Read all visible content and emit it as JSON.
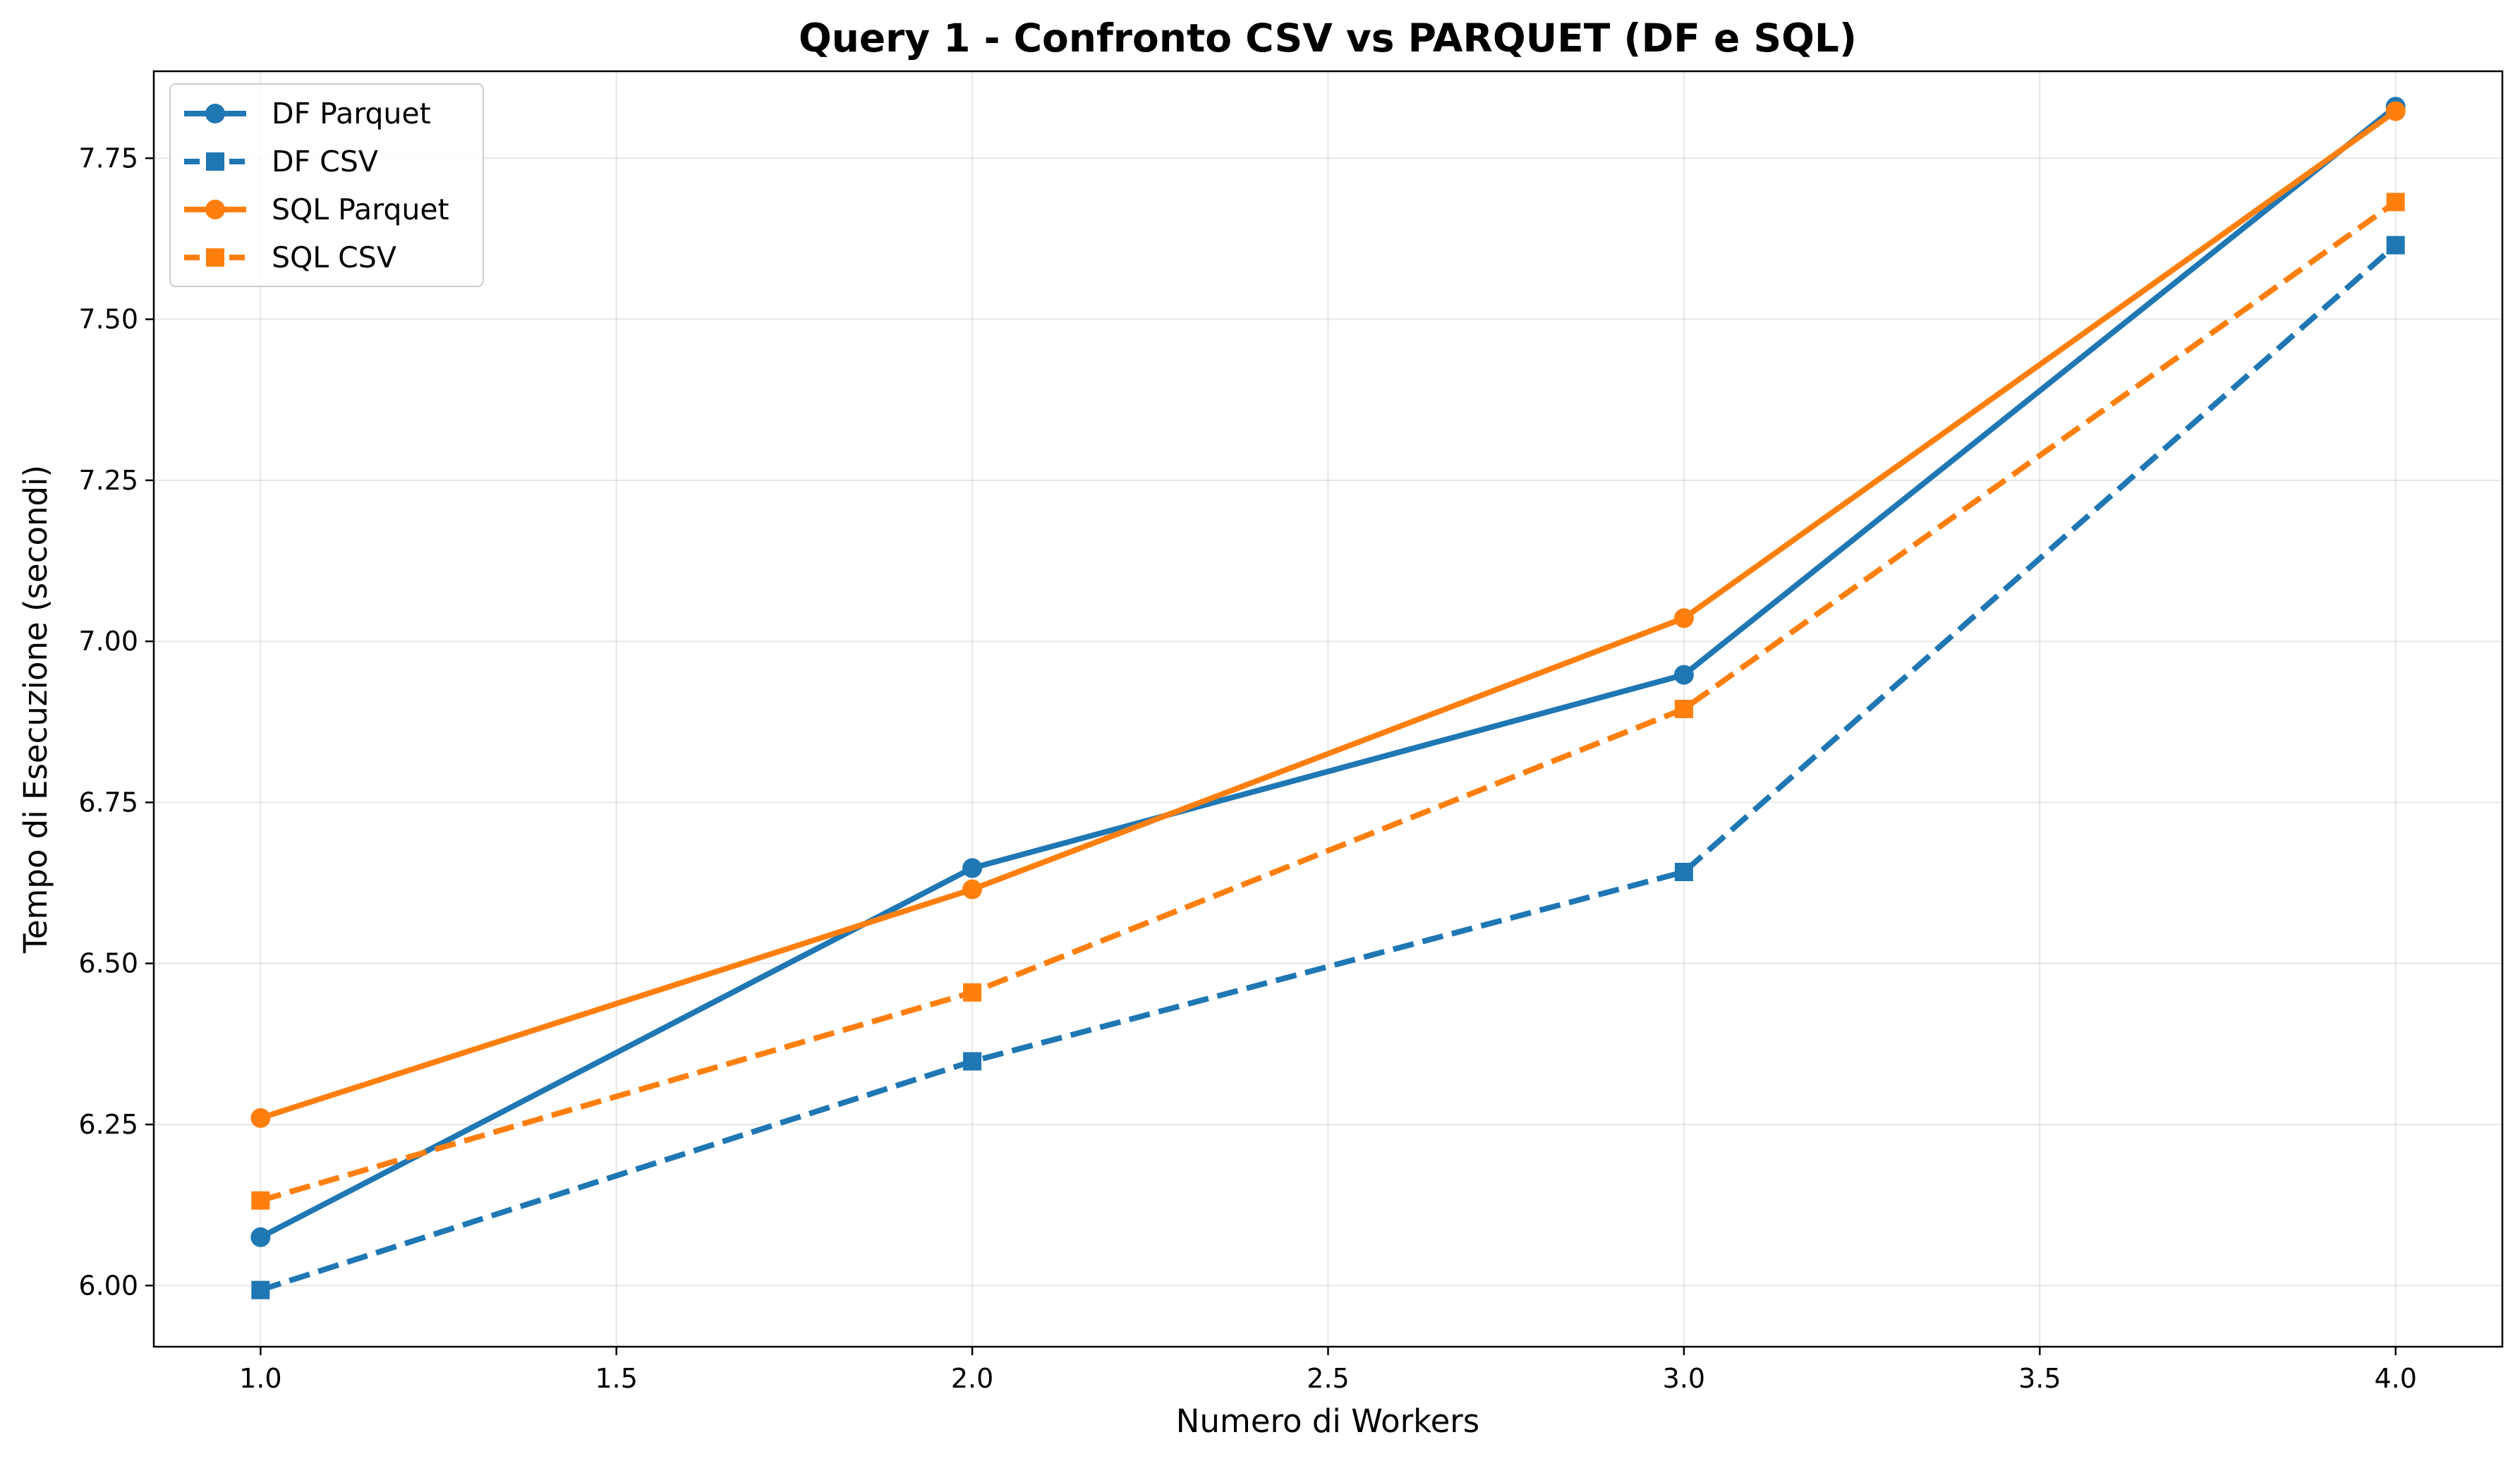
{
  "chart_data": {
    "type": "line",
    "title": "Query 1 - Confronto CSV vs PARQUET (DF e SQL)",
    "xlabel": "Numero di Workers",
    "ylabel": "Tempo di Esecuzione (secondi)",
    "xlim": [
      0.85,
      4.15
    ],
    "ylim": [
      5.905,
      7.885
    ],
    "xticks": [
      1.0,
      1.5,
      2.0,
      2.5,
      3.0,
      3.5,
      4.0
    ],
    "xtick_labels": [
      "1.0",
      "1.5",
      "2.0",
      "2.5",
      "3.0",
      "3.5",
      "4.0"
    ],
    "yticks": [
      6.0,
      6.25,
      6.5,
      6.75,
      7.0,
      7.25,
      7.5,
      7.75
    ],
    "ytick_labels": [
      "6.00",
      "6.25",
      "6.50",
      "6.75",
      "7.00",
      "7.25",
      "7.50",
      "7.75"
    ],
    "grid": true,
    "legend_position": "top-left",
    "x": [
      1,
      2,
      3,
      4
    ],
    "series": [
      {
        "name": "DF Parquet",
        "values": [
          6.075,
          6.648,
          6.948,
          7.83
        ],
        "color": "#1f77b4",
        "dashed": false,
        "marker": "circle"
      },
      {
        "name": "DF CSV",
        "values": [
          5.993,
          6.348,
          6.642,
          7.615
        ],
        "color": "#1f77b4",
        "dashed": true,
        "marker": "square"
      },
      {
        "name": "SQL Parquet",
        "values": [
          6.26,
          6.615,
          7.036,
          7.823
        ],
        "color": "#ff7f0e",
        "dashed": false,
        "marker": "circle"
      },
      {
        "name": "SQL CSV",
        "values": [
          6.132,
          6.455,
          6.895,
          7.682
        ],
        "color": "#ff7f0e",
        "dashed": true,
        "marker": "square"
      }
    ]
  }
}
